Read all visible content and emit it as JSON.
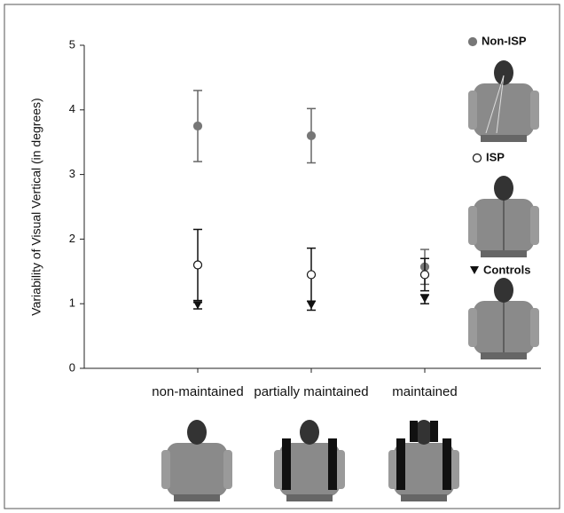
{
  "chart_data": {
    "type": "errorbar",
    "y_label": "Variability of Visual Vertical (in degrees)",
    "categories": [
      "non-maintained",
      "partially maintained",
      "maintained"
    ],
    "ylim": [
      0,
      5
    ],
    "yticks": [
      0,
      1,
      2,
      3,
      4,
      5
    ],
    "series": [
      {
        "name": "Non-ISP",
        "color": "#777777",
        "marker": "filled-circle",
        "values": [
          3.75,
          3.6,
          1.57
        ],
        "errors": [
          0.55,
          0.42,
          0.27
        ]
      },
      {
        "name": "ISP",
        "color": "#ffffff",
        "marker": "open-circle",
        "values": [
          1.6,
          1.45,
          1.45
        ],
        "errors": [
          0.55,
          0.41,
          0.25
        ]
      },
      {
        "name": "Controls",
        "color": "#111111",
        "marker": "triangle-down",
        "values": [
          0.97,
          0.97,
          1.07
        ],
        "errors": [
          0.05,
          0.07,
          0.07
        ]
      }
    ]
  }
}
